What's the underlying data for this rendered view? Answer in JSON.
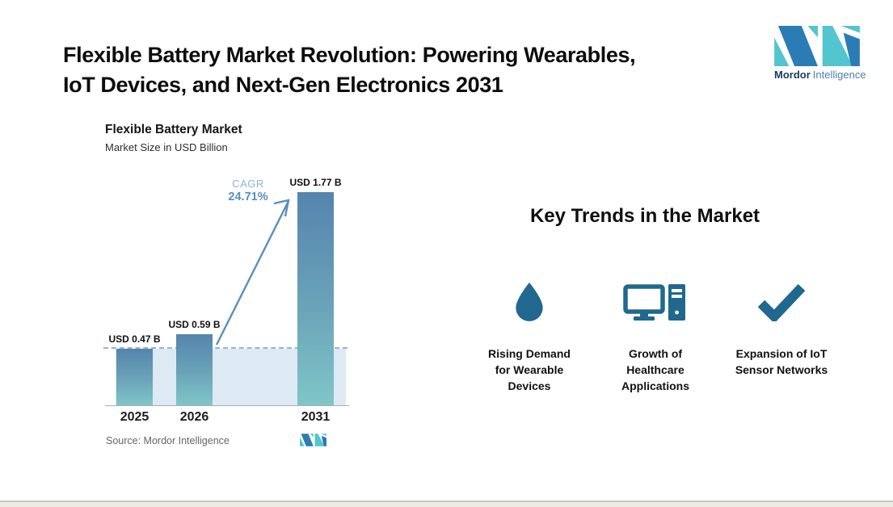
{
  "header": {
    "title_line1": "Flexible Battery Market Revolution: Powering Wearables,",
    "title_line2": "IoT Devices, and Next-Gen Electronics 2031"
  },
  "brand": {
    "name_bold": "Mordor",
    "name_light": "Intelligence"
  },
  "chart_data": {
    "type": "bar",
    "title": "Flexible Battery Market",
    "subtitle": "Market Size in USD Billion",
    "categories": [
      "2025",
      "2026",
      "2031"
    ],
    "values": [
      0.47,
      0.59,
      1.77
    ],
    "value_labels": [
      "USD 0.47 B",
      "USD 0.59 B",
      "USD 1.77 B"
    ],
    "unit": "USD Billion",
    "cagr": {
      "label": "CAGR",
      "value": "24.71%"
    },
    "source": "Source:  Mordor Intelligence",
    "ylim": [
      0,
      1.77
    ],
    "grid": false,
    "legend": "none",
    "annotations": [
      "Dashed horizontal reference line at the 2025 level (USD 0.47 B) with light shaded band down to the axis",
      "Upward arrow from the 2026 bar to the 2031 bar labelled with the CAGR"
    ]
  },
  "trends": {
    "heading": "Key Trends in the Market",
    "items": [
      {
        "icon": "water-drop-icon",
        "lines": [
          "Rising Demand",
          "for Wearable",
          "Devices"
        ]
      },
      {
        "icon": "desktop-computer-icon",
        "lines": [
          "Growth of",
          "Healthcare",
          "Applications"
        ]
      },
      {
        "icon": "checkmark-icon",
        "lines": [
          "Expansion of IoT",
          "Sensor Networks"
        ]
      }
    ]
  },
  "colors": {
    "bar_top": "#5584ad",
    "bar_bottom": "#7fc6c8",
    "shade": "#dde9f3",
    "dash_line": "#8fb6d8",
    "arrow": "#5a8fbc",
    "cagr_label": "#8cb2d8",
    "cagr_value": "#578fc0",
    "icon": "#20688f",
    "brand_teal": "#52c5ce",
    "brand_blue": "#2b7cb5",
    "brand_navy": "#173b5e",
    "brand_slate": "#4d7fa7",
    "source_text": "#666666"
  }
}
